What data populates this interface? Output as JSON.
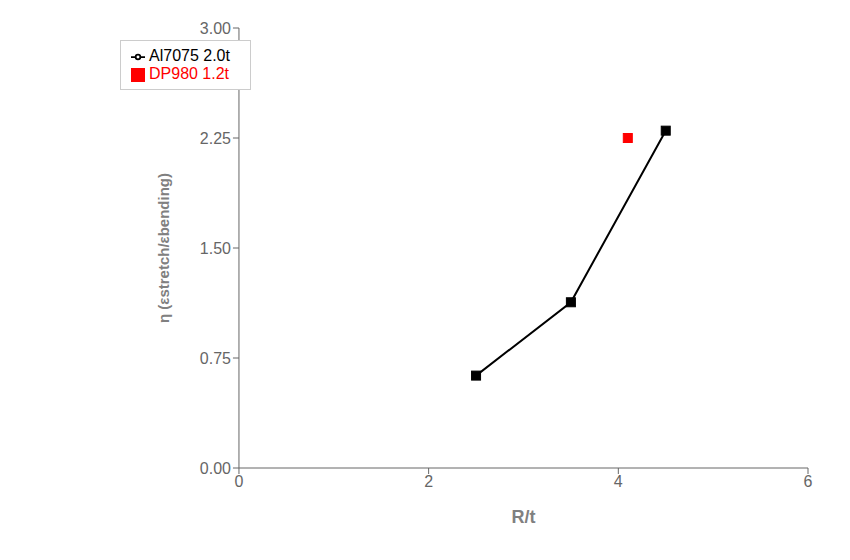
{
  "chart_data": {
    "type": "line",
    "xlabel": "R/t",
    "ylabel": "η (εstretch/εbending)",
    "xlim": [
      0,
      6
    ],
    "xticks": [
      0,
      2,
      4,
      6
    ],
    "ylim": [
      0,
      3
    ],
    "yticks": [
      {
        "value": 0,
        "label": "0.00"
      },
      0.75,
      {
        "value": 1.5,
        "label": "1.50"
      },
      2.25,
      {
        "value": 3,
        "label": "3.00"
      }
    ],
    "grid": false,
    "legend": "upper left",
    "series": [
      {
        "name": "Al7075 2.0t",
        "color": "#000000",
        "x": [
          2.5,
          3.5,
          4.5
        ],
        "values": [
          0.63,
          1.13,
          2.3
        ],
        "marker": "square",
        "line_style": "solid"
      },
      {
        "name": "DP980 1.2t",
        "color": "#ff0000",
        "x": [
          4.1
        ],
        "values": [
          2.25
        ],
        "marker": "square",
        "line_style": "none"
      }
    ]
  }
}
